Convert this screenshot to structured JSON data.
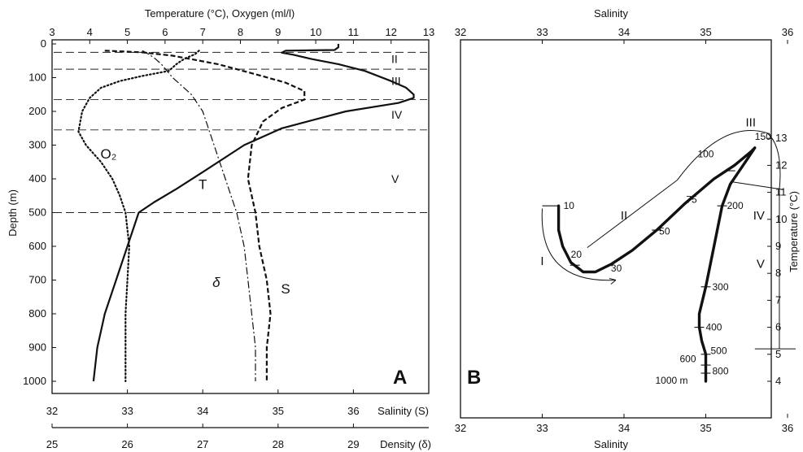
{
  "chart_data": [
    {
      "panel": "A",
      "type": "line",
      "top_axis": {
        "label": "Temperature (°C), Oxygen (ml/l)",
        "range": [
          3,
          13
        ],
        "ticks": [
          3,
          4,
          5,
          6,
          7,
          8,
          9,
          10,
          11,
          12,
          13
        ]
      },
      "left_axis": {
        "label": "Depth (m)",
        "range": [
          0,
          1000
        ],
        "inverted": true,
        "ticks": [
          0,
          100,
          200,
          300,
          400,
          500,
          600,
          700,
          800,
          900,
          1000
        ]
      },
      "salinity_axis": {
        "label": "Salinity (S)",
        "range": [
          32,
          37
        ],
        "ticks": [
          32,
          33,
          34,
          35,
          36
        ]
      },
      "density_axis": {
        "label": "Density (δ)",
        "range": [
          25,
          30
        ],
        "ticks": [
          25,
          26,
          27,
          28,
          29
        ]
      },
      "layer_labels": [
        {
          "text": "II",
          "depth": 45
        },
        {
          "text": "III",
          "depth": 110
        },
        {
          "text": "IV",
          "depth": 210
        },
        {
          "text": "V",
          "depth": 400
        }
      ],
      "layer_boundaries": [
        25,
        75,
        165,
        255,
        500
      ],
      "series": [
        {
          "name": "T",
          "axis": "temperature",
          "style": "solid",
          "points": [
            [
              0,
              10.6
            ],
            [
              10,
              10.6
            ],
            [
              18,
              10.5
            ],
            [
              20,
              9.2
            ],
            [
              26,
              9.1
            ],
            [
              32,
              9.4
            ],
            [
              45,
              9.9
            ],
            [
              60,
              10.6
            ],
            [
              80,
              11.3
            ],
            [
              110,
              12.0
            ],
            [
              130,
              12.4
            ],
            [
              150,
              12.6
            ],
            [
              160,
              12.6
            ],
            [
              175,
              12.2
            ],
            [
              200,
              10.8
            ],
            [
              250,
              9.1
            ],
            [
              300,
              8.1
            ],
            [
              380,
              7.0
            ],
            [
              430,
              6.3
            ],
            [
              470,
              5.7
            ],
            [
              500,
              5.3
            ],
            [
              600,
              5.0
            ],
            [
              700,
              4.7
            ],
            [
              800,
              4.4
            ],
            [
              900,
              4.2
            ],
            [
              1000,
              4.1
            ]
          ]
        },
        {
          "name": "O₂",
          "axis": "oxygen",
          "style": "dotted",
          "points": [
            [
              20,
              6.9
            ],
            [
              30,
              6.8
            ],
            [
              45,
              6.5
            ],
            [
              60,
              6.3
            ],
            [
              80,
              6.1
            ],
            [
              95,
              5.4
            ],
            [
              110,
              4.8
            ],
            [
              130,
              4.3
            ],
            [
              160,
              4.0
            ],
            [
              200,
              3.8
            ],
            [
              260,
              3.7
            ],
            [
              300,
              3.9
            ],
            [
              350,
              4.3
            ],
            [
              400,
              4.6
            ],
            [
              450,
              4.8
            ],
            [
              500,
              4.95
            ],
            [
              550,
              5.0
            ],
            [
              600,
              5.05
            ],
            [
              700,
              5.0
            ],
            [
              800,
              4.95
            ],
            [
              900,
              4.95
            ],
            [
              1000,
              4.95
            ]
          ]
        },
        {
          "name": "S",
          "axis": "salinity",
          "style": "dashed",
          "points": [
            [
              20,
              32.7
            ],
            [
              25,
              33.2
            ],
            [
              35,
              33.6
            ],
            [
              60,
              34.2
            ],
            [
              90,
              34.7
            ],
            [
              115,
              35.1
            ],
            [
              140,
              35.35
            ],
            [
              165,
              35.35
            ],
            [
              190,
              35.05
            ],
            [
              230,
              34.8
            ],
            [
              300,
              34.65
            ],
            [
              400,
              34.6
            ],
            [
              500,
              34.7
            ],
            [
              600,
              34.75
            ],
            [
              700,
              34.85
            ],
            [
              800,
              34.9
            ],
            [
              900,
              34.85
            ],
            [
              1000,
              34.85
            ]
          ]
        },
        {
          "name": "δ",
          "axis": "density",
          "style": "dash-dot",
          "points": [
            [
              20,
              26.2
            ],
            [
              40,
              26.35
            ],
            [
              60,
              26.45
            ],
            [
              100,
              26.6
            ],
            [
              150,
              26.85
            ],
            [
              200,
              27.0
            ],
            [
              300,
              27.15
            ],
            [
              400,
              27.3
            ],
            [
              500,
              27.45
            ],
            [
              600,
              27.55
            ],
            [
              700,
              27.6
            ],
            [
              800,
              27.65
            ],
            [
              900,
              27.7
            ],
            [
              1000,
              27.7
            ]
          ]
        }
      ],
      "curve_labels": [
        {
          "text": "O₂",
          "x": 4.5,
          "axis": "oxygen",
          "depth": 340
        },
        {
          "text": "T",
          "x": 7.0,
          "axis": "temperature",
          "depth": 430
        },
        {
          "text": "δ",
          "x": 27.18,
          "axis": "density",
          "depth": 720
        },
        {
          "text": "S",
          "x": 35.1,
          "axis": "salinity",
          "depth": 740
        }
      ],
      "panel_letter": "A"
    },
    {
      "panel": "B",
      "type": "line",
      "x_axis": {
        "label": "Salinity",
        "range": [
          32,
          36.6
        ],
        "ticks": [
          32,
          33,
          34,
          35,
          36
        ]
      },
      "y_axis": {
        "label": "Temperature (°C)",
        "range": [
          3.4,
          14
        ],
        "ticks": [
          4,
          5,
          6,
          7,
          8,
          9,
          10,
          11,
          12,
          13
        ]
      },
      "ts_curve": [
        [
          33.2,
          10.5
        ],
        [
          33.2,
          9.6
        ],
        [
          33.25,
          9.0
        ],
        [
          33.35,
          8.4
        ],
        [
          33.5,
          8.05
        ],
        [
          33.65,
          8.05
        ],
        [
          33.85,
          8.35
        ],
        [
          34.1,
          8.85
        ],
        [
          34.4,
          9.6
        ],
        [
          34.75,
          10.6
        ],
        [
          35.1,
          11.5
        ],
        [
          35.35,
          12.0
        ],
        [
          35.55,
          12.5
        ],
        [
          35.6,
          12.65
        ],
        [
          35.5,
          12.2
        ],
        [
          35.3,
          11.3
        ],
        [
          35.2,
          10.5
        ],
        [
          35.1,
          9.0
        ],
        [
          35.0,
          7.5
        ],
        [
          34.92,
          6.5
        ],
        [
          34.92,
          6.0
        ],
        [
          34.95,
          5.5
        ],
        [
          35.0,
          5.0
        ],
        [
          35.0,
          4.6
        ],
        [
          35.0,
          4.3
        ],
        [
          35.0,
          4.0
        ]
      ],
      "depth_labels": [
        {
          "text": "10",
          "s": 33.2,
          "t": 10.5,
          "dx": 6,
          "dy": 4
        },
        {
          "text": "20",
          "s": 33.35,
          "t": 8.4,
          "dx": 0,
          "dy": -6
        },
        {
          "text": "30",
          "s": 33.8,
          "t": 8.25,
          "dx": 4,
          "dy": 6
        },
        {
          "text": "50",
          "s": 34.35,
          "t": 9.55,
          "dx": 8,
          "dy": 4
        },
        {
          "text": "75",
          "s": 34.7,
          "t": 10.85,
          "dx": 6,
          "dy": 8
        },
        {
          "text": "100",
          "s": 34.9,
          "t": 12.3,
          "dx": 0,
          "dy": 0
        },
        {
          "text": "150",
          "s": 35.6,
          "t": 12.95,
          "dx": 0,
          "dy": 0
        },
        {
          "text": "200",
          "s": 35.2,
          "t": 10.5,
          "dx": 6,
          "dy": 4
        },
        {
          "text": "300",
          "s": 35.0,
          "t": 7.5,
          "dx": 8,
          "dy": 4
        },
        {
          "text": "400",
          "s": 34.92,
          "t": 6.0,
          "dx": 8,
          "dy": 4
        },
        {
          "text": "500",
          "s": 35.0,
          "t": 5.1,
          "dx": 6,
          "dy": 3
        },
        {
          "text": "600",
          "s": 35.0,
          "t": 4.8,
          "dx": -32,
          "dy": 3
        },
        {
          "text": "800",
          "s": 35.0,
          "t": 4.35,
          "dx": 8,
          "dy": 3
        },
        {
          "text": "1000 m",
          "s": 35.0,
          "t": 4.0,
          "dx": -62,
          "dy": 3
        }
      ],
      "depth_ticks": [
        [
          35.2,
          10.5
        ],
        [
          35.0,
          7.5
        ],
        [
          34.92,
          6.0
        ],
        [
          35.0,
          5.0
        ],
        [
          35.0,
          4.6
        ],
        [
          35.0,
          4.3
        ],
        [
          34.4,
          9.6
        ],
        [
          33.4,
          8.3
        ],
        [
          35.3,
          11.8
        ]
      ],
      "zone_labels": [
        {
          "text": "I",
          "s": 33.0,
          "t": 8.3
        },
        {
          "text": "II",
          "s": 34.0,
          "t": 10.0
        },
        {
          "text": "III",
          "s": 35.55,
          "t": 13.45
        },
        {
          "text": "IV",
          "s": 35.65,
          "t": 10.0
        },
        {
          "text": "V",
          "s": 35.67,
          "t": 8.2
        }
      ],
      "panel_letter": "B"
    }
  ]
}
